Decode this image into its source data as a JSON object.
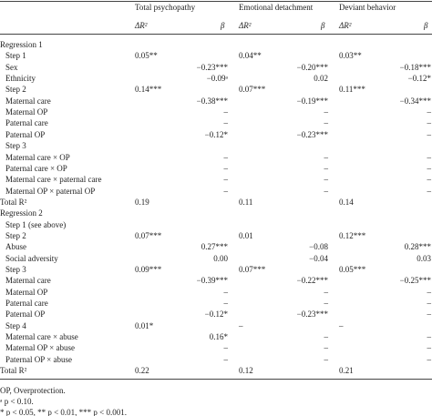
{
  "table": {
    "groups": [
      "Total psychopathy",
      "Emotional detachment",
      "Deviant behavior"
    ],
    "subheaders": [
      "ΔR²",
      "β",
      "ΔR²",
      "β",
      "ΔR²",
      "β"
    ],
    "sections": [
      {
        "title": "Regression 1",
        "rows": [
          {
            "label": "Step 1",
            "cells": [
              "0.05**",
              null,
              "0.04**",
              null,
              "0.03**",
              null
            ]
          },
          {
            "label": "Sex",
            "cells": [
              null,
              "−0.23***",
              null,
              "−0.20***",
              null,
              "−0.18***"
            ]
          },
          {
            "label": "Ethnicity",
            "cells": [
              null,
              "−0.09ᵃ",
              null,
              "0.02",
              null,
              "−0.12*"
            ]
          },
          {
            "label": "Step 2",
            "cells": [
              "0.14***",
              null,
              "0.07***",
              null,
              "0.11***",
              null
            ]
          },
          {
            "label": "Maternal care",
            "cells": [
              null,
              "−0.38***",
              null,
              "−0.19***",
              null,
              "−0.34***"
            ]
          },
          {
            "label": "Maternal OP",
            "cells": [
              null,
              "–",
              null,
              "–",
              null,
              "–"
            ]
          },
          {
            "label": "Paternal care",
            "cells": [
              null,
              "–",
              null,
              "–",
              null,
              "–"
            ]
          },
          {
            "label": "Paternal OP",
            "cells": [
              null,
              "−0.12*",
              null,
              "−0.23***",
              null,
              "–"
            ]
          },
          {
            "label": "Step 3",
            "cells": [
              null,
              null,
              null,
              null,
              null,
              null
            ]
          },
          {
            "label": "Maternal care × OP",
            "cells": [
              null,
              "–",
              null,
              "–",
              null,
              "–"
            ]
          },
          {
            "label": "Paternal care × OP",
            "cells": [
              null,
              "–",
              null,
              "–",
              null,
              "–"
            ]
          },
          {
            "label": "Maternal care × paternal care",
            "cells": [
              null,
              "–",
              null,
              "–",
              null,
              "–"
            ]
          },
          {
            "label": "Maternal OP × paternal OP",
            "cells": [
              null,
              "–",
              null,
              "–",
              null,
              "–"
            ]
          }
        ],
        "total": {
          "label": "Total R²",
          "cells": [
            "0.19",
            null,
            "0.11",
            null,
            "0.14",
            null
          ]
        }
      },
      {
        "title": "Regression 2",
        "rows": [
          {
            "label": "Step 1 (see above)",
            "cells": [
              null,
              null,
              null,
              null,
              null,
              null
            ]
          },
          {
            "label": "Step 2",
            "cells": [
              "0.07***",
              null,
              "0.01",
              null,
              "0.12***",
              null
            ]
          },
          {
            "label": "Abuse",
            "cells": [
              null,
              "0.27***",
              null,
              "−0.08",
              null,
              "0.28***"
            ]
          },
          {
            "label": "Social adversity",
            "cells": [
              null,
              "0.00",
              null,
              "−0.04",
              null,
              "0.03"
            ]
          },
          {
            "label": "Step 3",
            "cells": [
              "0.09***",
              null,
              "0.07***",
              null,
              "0.05***",
              null
            ]
          },
          {
            "label": "Maternal care",
            "cells": [
              null,
              "−0.39***",
              null,
              "−0.22***",
              null,
              "−0.25***"
            ]
          },
          {
            "label": "Maternal OP",
            "cells": [
              null,
              "–",
              null,
              "–",
              null,
              "–"
            ]
          },
          {
            "label": "Paternal care",
            "cells": [
              null,
              "–",
              null,
              "–",
              null,
              "–"
            ]
          },
          {
            "label": "Paternal OP",
            "cells": [
              null,
              "−0.12*",
              null,
              "−0.23***",
              null,
              "–"
            ]
          },
          {
            "label": "Step 4",
            "cells": [
              "0.01*",
              null,
              "–",
              null,
              "–",
              null
            ]
          },
          {
            "label": "Maternal care × abuse",
            "cells": [
              null,
              "0.16*",
              null,
              "–",
              null,
              "–"
            ]
          },
          {
            "label": "Maternal OP × abuse",
            "cells": [
              null,
              "–",
              null,
              "–",
              null,
              "–"
            ]
          },
          {
            "label": "Paternal OP × abuse",
            "cells": [
              null,
              "–",
              null,
              "–",
              null,
              "–"
            ]
          }
        ],
        "total": {
          "label": "Total R²",
          "cells": [
            "0.22",
            null,
            "0.12",
            null,
            "0.21",
            null
          ]
        }
      }
    ]
  },
  "footnotes": [
    "OP, Overprotection.",
    "ᵃ p < 0.10.",
    "* p < 0.05, ** p < 0.01, *** p < 0.001."
  ]
}
